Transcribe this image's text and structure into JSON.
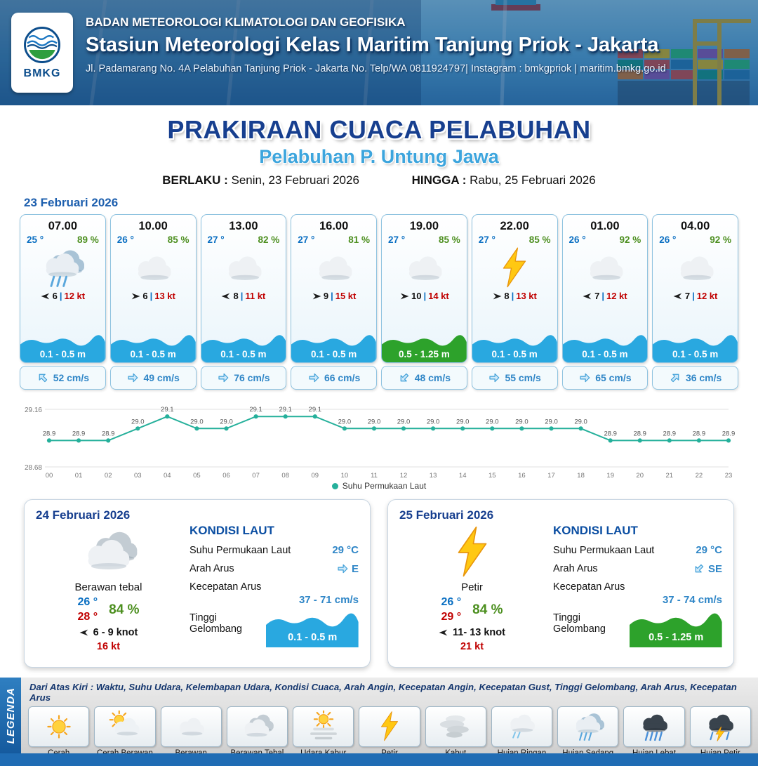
{
  "header": {
    "logo_label": "BMKG",
    "agency": "BADAN METEOROLOGI KLIMATOLOGI DAN GEOFISIKA",
    "station": "Stasiun Meteorologi Kelas I Maritim Tanjung Priok - Jakarta",
    "contact": "Jl. Padamarang No. 4A Pelabuhan Tanjung Priok - Jakarta No. Telp/WA 0811924797| Instagram : bmkgpriok | maritim.bmkg.go.id"
  },
  "title": {
    "main": "PRAKIRAAN CUACA PELABUHAN",
    "port": "Pelabuhan P. Untung Jawa",
    "valid_label": "BERLAKU :",
    "valid_value": "Senin, 23 Februari 2026",
    "until_label": "HINGGA :",
    "until_value": "Rabu, 25 Februari 2026"
  },
  "forecast_date": "23 Februari 2026",
  "misc": {
    "wind_separator": "|"
  },
  "cards": [
    {
      "time": "07.00",
      "temp": "25 °",
      "humidity": "89 %",
      "icon": "rain-med",
      "wind_dir": "left",
      "wind_speed": "6",
      "gust": "12 kt",
      "wave": "0.1 - 0.5 m",
      "wave_level": "calm",
      "current_dir": "up-left",
      "current": "52 cm/s"
    },
    {
      "time": "10.00",
      "temp": "26 °",
      "humidity": "85 %",
      "icon": "cloud",
      "wind_dir": "right",
      "wind_speed": "6",
      "gust": "13 kt",
      "wave": "0.1 - 0.5 m",
      "wave_level": "calm",
      "current_dir": "right",
      "current": "49 cm/s"
    },
    {
      "time": "13.00",
      "temp": "27 °",
      "humidity": "82 %",
      "icon": "cloud",
      "wind_dir": "left",
      "wind_speed": "8",
      "gust": "11 kt",
      "wave": "0.1 - 0.5 m",
      "wave_level": "calm",
      "current_dir": "right",
      "current": "76 cm/s"
    },
    {
      "time": "16.00",
      "temp": "27 °",
      "humidity": "81 %",
      "icon": "cloud",
      "wind_dir": "right",
      "wind_speed": "9",
      "gust": "15 kt",
      "wave": "0.1 - 0.5 m",
      "wave_level": "calm",
      "current_dir": "right",
      "current": "66 cm/s"
    },
    {
      "time": "19.00",
      "temp": "27 °",
      "humidity": "85 %",
      "icon": "cloud",
      "wind_dir": "right",
      "wind_speed": "10",
      "gust": "14 kt",
      "wave": "0.5 - 1.25 m",
      "wave_level": "moderate",
      "current_dir": "down-left",
      "current": "48 cm/s"
    },
    {
      "time": "22.00",
      "temp": "27 °",
      "humidity": "85 %",
      "icon": "thunder",
      "wind_dir": "right",
      "wind_speed": "8",
      "gust": "13 kt",
      "wave": "0.1 - 0.5 m",
      "wave_level": "calm",
      "current_dir": "right",
      "current": "55 cm/s"
    },
    {
      "time": "01.00",
      "temp": "26 °",
      "humidity": "92 %",
      "icon": "cloud",
      "wind_dir": "left",
      "wind_speed": "7",
      "gust": "12 kt",
      "wave": "0.1 - 0.5 m",
      "wave_level": "calm",
      "current_dir": "right",
      "current": "65 cm/s"
    },
    {
      "time": "04.00",
      "temp": "26 °",
      "humidity": "92 %",
      "icon": "cloud",
      "wind_dir": "left",
      "wind_speed": "7",
      "gust": "12 kt",
      "wave": "0.1 - 0.5 m",
      "wave_level": "calm",
      "current_dir": "up-right",
      "current": "36 cm/s"
    }
  ],
  "chart_data": {
    "type": "line",
    "title": "Suhu Permukaan Laut",
    "legend": "Suhu Permukaan Laut",
    "x": [
      "00",
      "01",
      "02",
      "03",
      "04",
      "05",
      "06",
      "07",
      "08",
      "09",
      "10",
      "11",
      "12",
      "13",
      "14",
      "15",
      "16",
      "17",
      "18",
      "19",
      "20",
      "21",
      "22",
      "23"
    ],
    "values": [
      28.9,
      28.9,
      28.9,
      29.0,
      29.1,
      29.0,
      29.0,
      29.1,
      29.1,
      29.1,
      29.0,
      29.0,
      29.0,
      29.0,
      29.0,
      29.0,
      29.0,
      29.0,
      29.0,
      28.9,
      28.9,
      28.9,
      28.9,
      28.9
    ],
    "ylim": [
      28.68,
      29.16
    ],
    "line_color": "#25b09b",
    "grid": true,
    "legend_position": "bottom"
  },
  "daily": [
    {
      "date": "24 Februari 2026",
      "icon": "cloud-thick",
      "condition": "Berawan tebal",
      "temp_min": "26 °",
      "temp_max": "28 °",
      "humidity": "84 %",
      "wind_dir": "left",
      "wind_range": "6  - 9 knot",
      "gust": "16 kt",
      "sea": {
        "title": "KONDISI LAUT",
        "sst_label": "Suhu Permukaan Laut",
        "sst": "29 °C",
        "dir_label": "Arah Arus",
        "dir": "E",
        "dir_arrow": "right",
        "speed_label": "Kecepatan Arus",
        "speed": "37 - 71 cm/s",
        "wave_label": "Tinggi Gelombang",
        "wave": "0.1 - 0.5 m",
        "wave_level": "calm"
      }
    },
    {
      "date": "25 Februari 2026",
      "icon": "thunder",
      "condition": "Petir",
      "temp_min": "26 °",
      "temp_max": "29 °",
      "humidity": "84 %",
      "wind_dir": "left",
      "wind_range": "11- 13 knot",
      "gust": "21 kt",
      "sea": {
        "title": "KONDISI LAUT",
        "sst_label": "Suhu Permukaan Laut",
        "sst": "29 °C",
        "dir_label": "Arah Arus",
        "dir": "SE",
        "dir_arrow": "down-left",
        "speed_label": "Kecepatan Arus",
        "speed": "37 - 74 cm/s",
        "wave_label": "Tinggi Gelombang",
        "wave": "0.5 - 1.25 m",
        "wave_level": "moderate"
      }
    }
  ],
  "legend": {
    "title": "LEGENDA",
    "description": "Dari Atas Kiri : Waktu, Suhu Udara, Kelembapan Udara, Kondisi Cuaca, Arah Angin, Kecepatan Angin, Kecepatan Gust, Tinggi Gelombang, Arah Arus, Kecepatan Arus",
    "items": [
      {
        "label": "Cerah",
        "icon": "sun"
      },
      {
        "label": "Cerah Berawan",
        "icon": "sun-cloud"
      },
      {
        "label": "Berawan",
        "icon": "cloud"
      },
      {
        "label": "Berawan Tebal",
        "icon": "cloud-thick"
      },
      {
        "label": "Udara Kabur",
        "icon": "haze"
      },
      {
        "label": "Petir",
        "icon": "thunder"
      },
      {
        "label": "Kabut",
        "icon": "fog"
      },
      {
        "label": "Hujan Ringan",
        "icon": "rain-light"
      },
      {
        "label": "Hujan Sedang",
        "icon": "rain-med"
      },
      {
        "label": "Hujan Lebat",
        "icon": "rain-heavy"
      },
      {
        "label": "Hujan Petir",
        "icon": "rain-thunder"
      }
    ]
  },
  "colors": {
    "header_blue": "#1f6cb4",
    "title_blue": "#173f8f",
    "port_blue": "#3da5dd",
    "temp_blue": "#0a6fc2",
    "humidity_green": "#4c8f1f",
    "gust_red": "#c00000",
    "wave_blue": "#29a8e0",
    "wave_green": "#2da22b",
    "current_blue": "#2f86c7",
    "chart_line": "#25b09b"
  }
}
